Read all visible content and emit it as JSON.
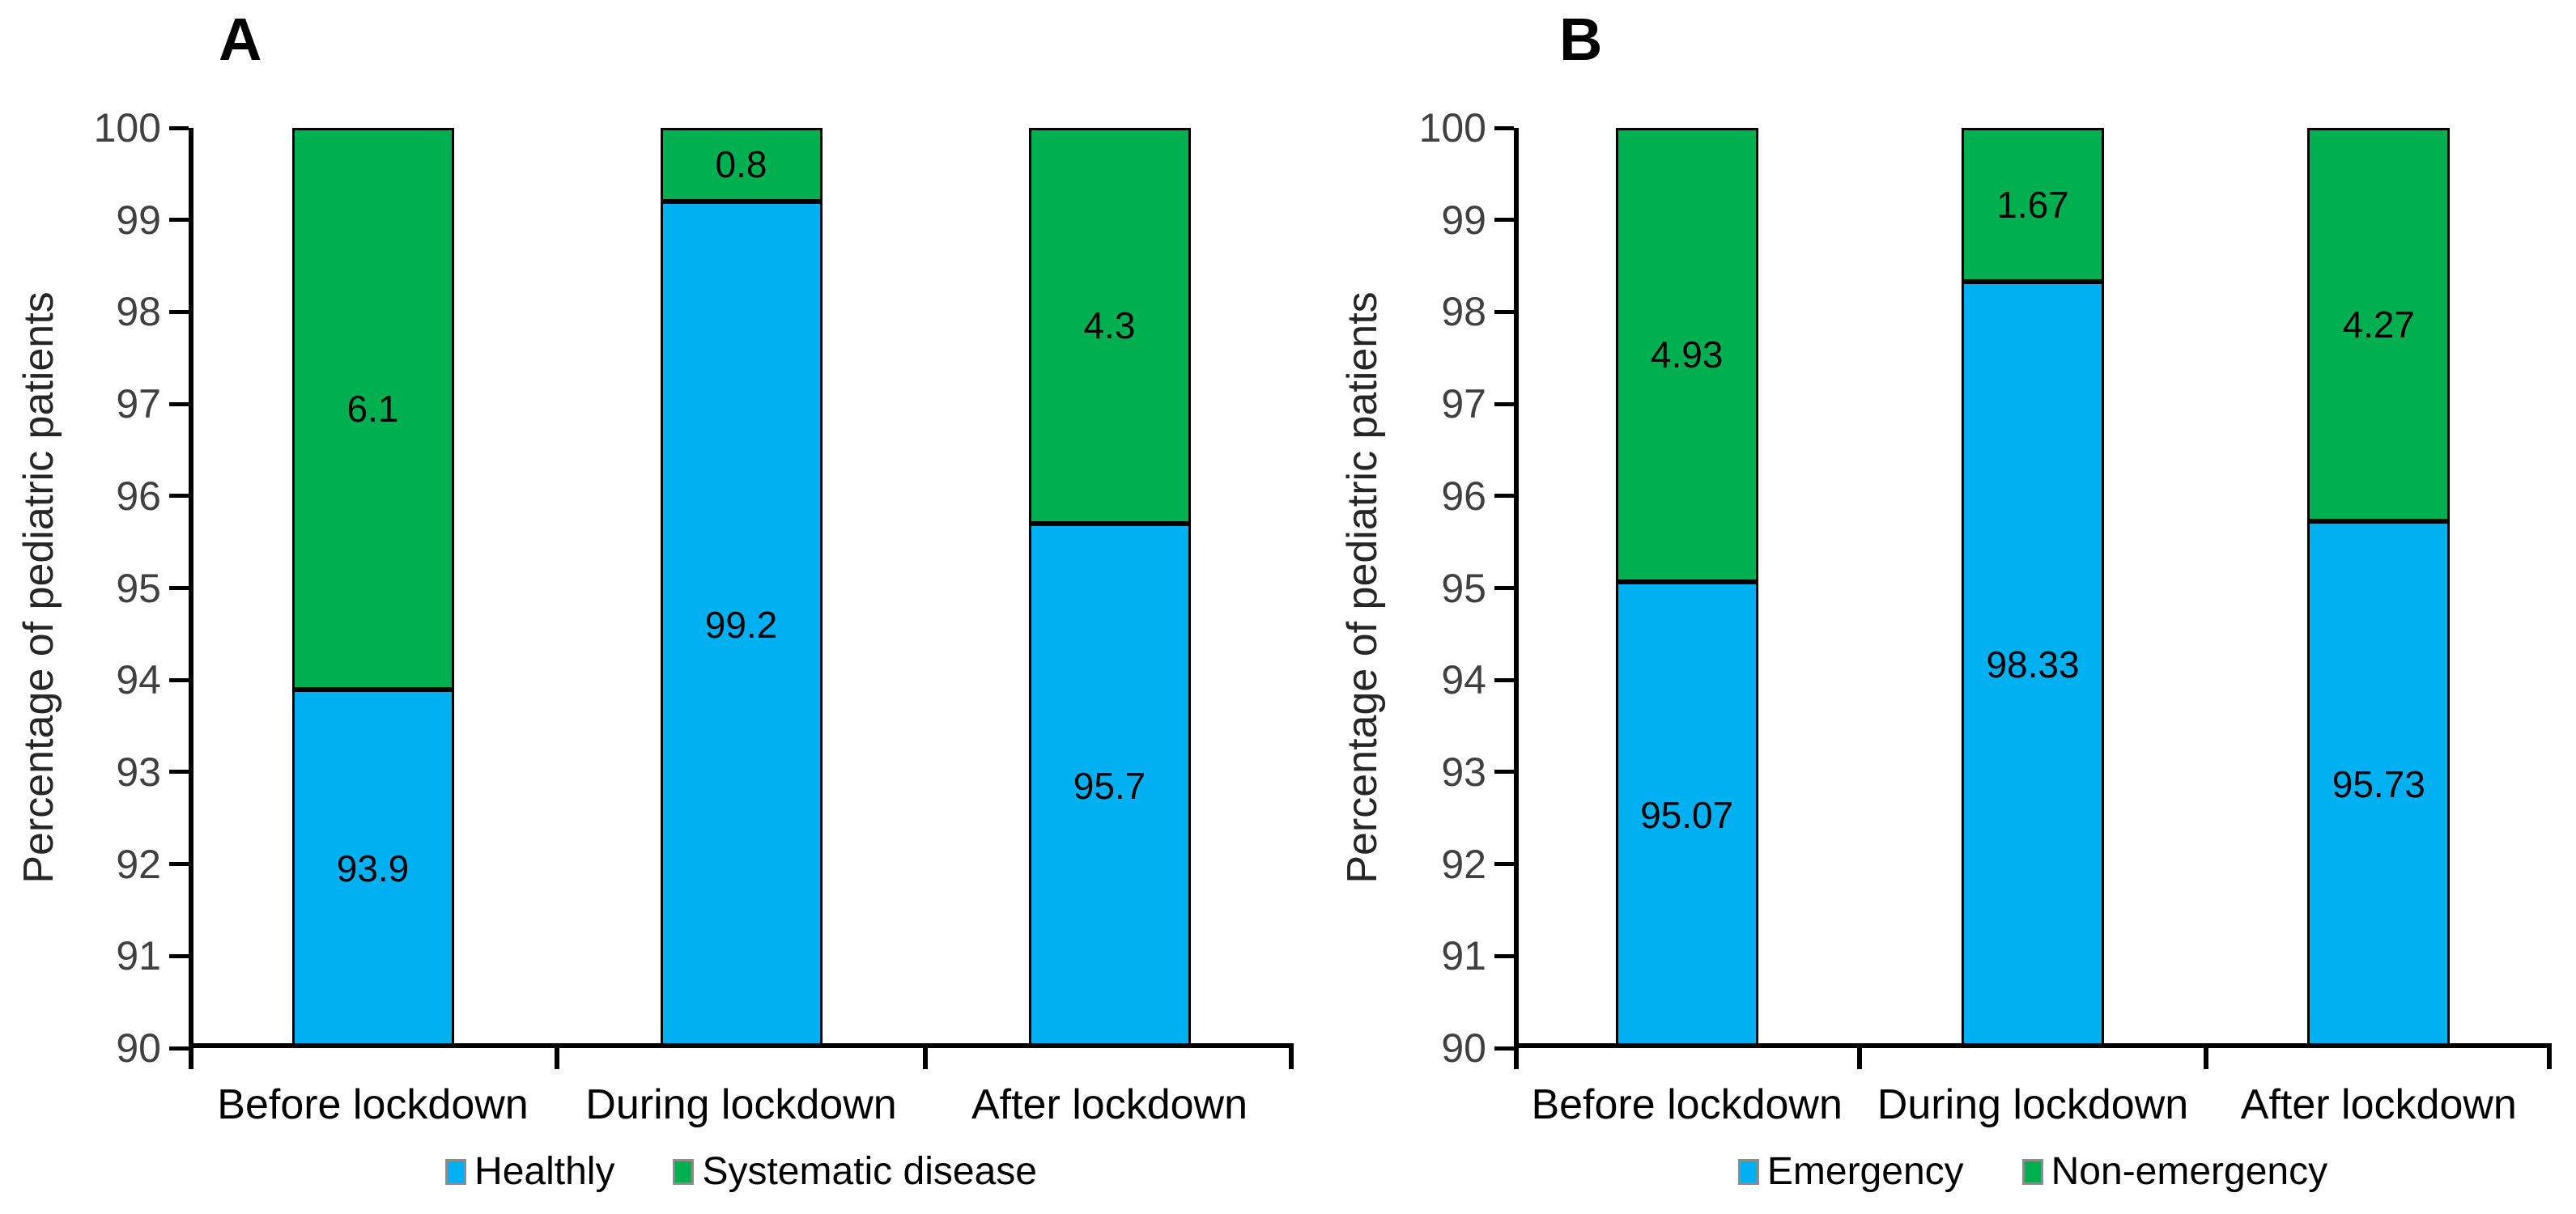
{
  "chart_data": [
    {
      "type": "bar",
      "stacked": true,
      "title": "A",
      "ylabel": "Percentage of pediatric patients",
      "categories": [
        "Before lockdown",
        "During lockdown",
        "After lockdown"
      ],
      "series": [
        {
          "name": "Healthly",
          "color": "#00b0f0",
          "values": [
            93.9,
            99.2,
            95.7
          ]
        },
        {
          "name": "Systematic disease",
          "color": "#00b050",
          "values": [
            6.1,
            0.8,
            4.3
          ]
        }
      ],
      "ylim": [
        90,
        100
      ],
      "ytick_step": 1,
      "grid": false,
      "legend_position": "bottom"
    },
    {
      "type": "bar",
      "stacked": true,
      "title": "B",
      "ylabel": "Percentage of pediatric patients",
      "categories": [
        "Before lockdown",
        "During lockdown",
        "After lockdown"
      ],
      "series": [
        {
          "name": "Emergency",
          "color": "#00b0f0",
          "values": [
            95.07,
            98.33,
            95.73
          ]
        },
        {
          "name": "Non-emergency",
          "color": "#00b050",
          "values": [
            4.93,
            1.67,
            4.27
          ]
        }
      ],
      "ylim": [
        90,
        100
      ],
      "ytick_step": 1,
      "grid": false,
      "legend_position": "bottom"
    }
  ],
  "colors": {
    "bar_fill_blue": "#00b0f0",
    "bar_fill_green": "#00b050",
    "bar_border": "#000000",
    "axis": "#000000",
    "tick_label": "#404040",
    "text": "#000000"
  }
}
